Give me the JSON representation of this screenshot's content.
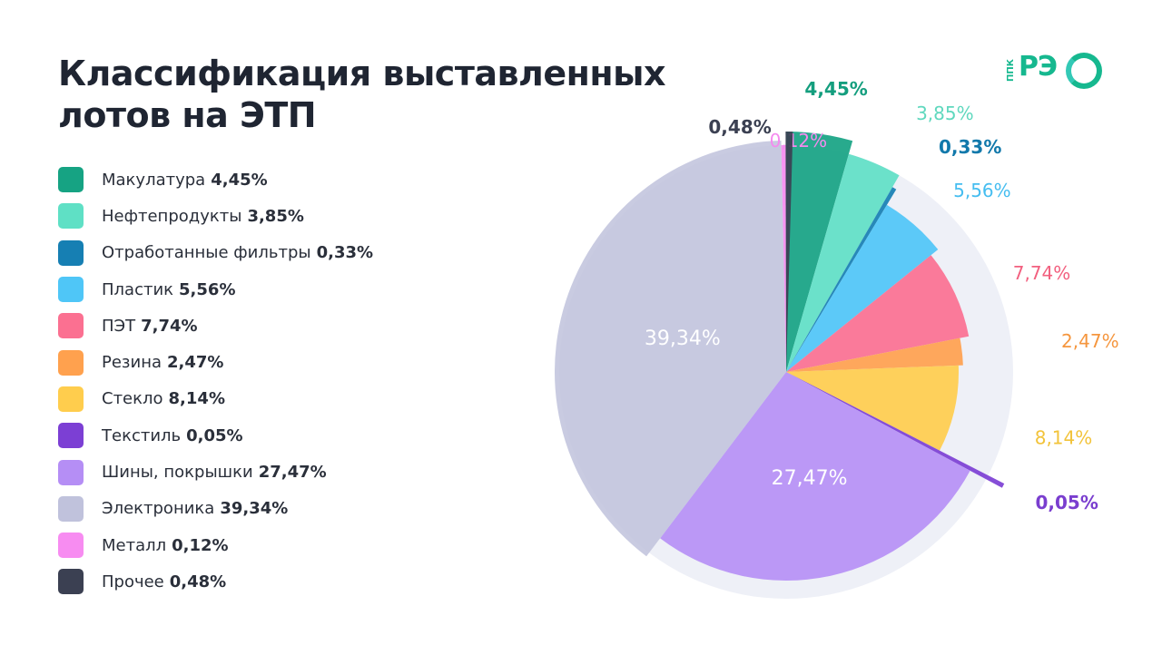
{
  "title": "Классификация выставленных лотов на ЭТП",
  "logo": {
    "small": "ППК",
    "mark": "РЭ"
  },
  "legend": [
    {
      "label": "Макулатура",
      "value": "4,45%",
      "color": "#16a383"
    },
    {
      "label": "Нефтепродукты",
      "value": "3,85%",
      "color": "#5fe0c5"
    },
    {
      "label": "Отработанные фильтры",
      "value": "0,33%",
      "color": "#167fb3"
    },
    {
      "label": "Пластик",
      "value": "5,56%",
      "color": "#4fc6f7"
    },
    {
      "label": "ПЭТ",
      "value": "7,74%",
      "color": "#fb7091"
    },
    {
      "label": "Резина",
      "value": "2,47%",
      "color": "#ffa14e"
    },
    {
      "label": "Стекло",
      "value": "8,14%",
      "color": "#ffcd4d"
    },
    {
      "label": "Текстиль",
      "value": "0,05%",
      "color": "#7c3fd4"
    },
    {
      "label": "Шины, покрышки",
      "value": "27,47%",
      "color": "#b58ef5"
    },
    {
      "label": "Электроника",
      "value": "39,34%",
      "color": "#c0c2dc"
    },
    {
      "label": "Металл",
      "value": "0,12%",
      "color": "#f78cf1"
    },
    {
      "label": "Прочее",
      "value": "0,48%",
      "color": "#3b4052"
    }
  ],
  "chart_data": {
    "type": "pie",
    "title": "Классификация выставленных лотов на ЭТП",
    "categories": [
      "Макулатура",
      "Нефтепродукты",
      "Отработанные фильтры",
      "Пластик",
      "ПЭТ",
      "Резина",
      "Стекло",
      "Текстиль",
      "Шины, покрышки",
      "Электроника",
      "Металл",
      "Прочее"
    ],
    "values": [
      4.45,
      3.85,
      0.33,
      5.56,
      7.74,
      2.47,
      8.14,
      0.05,
      27.47,
      39.34,
      0.12,
      0.48
    ],
    "value_labels": [
      "4,45%",
      "3,85%",
      "0,33%",
      "5,56%",
      "7,74%",
      "2,47%",
      "8,14%",
      "0,05%",
      "27,47%",
      "39,34%",
      "0,12%",
      "0,48%"
    ],
    "colors": [
      "#16a383",
      "#5fe0c5",
      "#167fb3",
      "#4fc6f7",
      "#fb7091",
      "#ffa14e",
      "#ffcd4d",
      "#7c3fd4",
      "#b58ef5",
      "#c0c2dc",
      "#f78cf1",
      "#3b4052"
    ],
    "label_colors": [
      "#149e7e",
      "#5fd8be",
      "#1279ab",
      "#45bdf0",
      "#f2607f",
      "#f5963e",
      "#f2c33a",
      "#7a3ecf",
      "#ffffff",
      "#ffffff",
      "#f58aef",
      "#3b4052"
    ]
  }
}
